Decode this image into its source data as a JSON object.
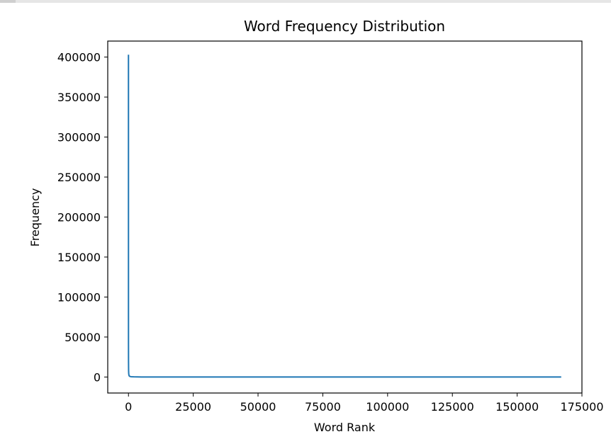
{
  "chart_data": {
    "type": "line",
    "title": "Word Frequency Distribution",
    "xlabel": "Word Rank",
    "ylabel": "Frequency",
    "xlim": [
      -8000,
      175000
    ],
    "ylim": [
      -20000,
      420000
    ],
    "xticks": [
      0,
      25000,
      50000,
      75000,
      100000,
      125000,
      150000,
      175000
    ],
    "yticks": [
      0,
      50000,
      100000,
      150000,
      200000,
      250000,
      300000,
      350000,
      400000
    ],
    "grid": false,
    "series": [
      {
        "color": "#1f77b4",
        "x": [
          1,
          2,
          3,
          5,
          10,
          20,
          50,
          100,
          200,
          300,
          500,
          1000,
          2000,
          5000,
          10000,
          20000,
          50000,
          100000,
          150000,
          167000
        ],
        "y": [
          403000,
          201500,
          134000,
          80600,
          40300,
          20150,
          8060,
          4030,
          2015,
          1340,
          806,
          403,
          200,
          80,
          40,
          20,
          8,
          4,
          3,
          2
        ]
      }
    ]
  }
}
